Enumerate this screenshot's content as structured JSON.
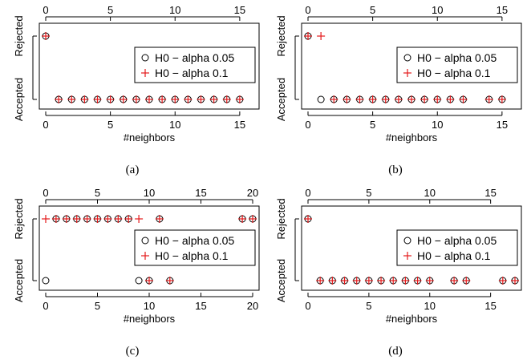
{
  "chart_data": [
    {
      "type": "scatter",
      "caption": "(a)",
      "xlabel": "#neighbors",
      "xlim": [
        0,
        16
      ],
      "x_ticks": [
        0,
        5,
        10,
        15
      ],
      "y_categories": [
        "Accepted",
        "Rejected"
      ],
      "legend": {
        "placement": "right",
        "entries": [
          "H0 − alpha 0.05",
          "H0 − alpha 0.1"
        ]
      },
      "series": [
        {
          "name": "H0 − alpha 0.05",
          "marker": "circle",
          "color": "#000000",
          "points": [
            [
              0,
              "Rejected"
            ],
            [
              1,
              "Accepted"
            ],
            [
              2,
              "Accepted"
            ],
            [
              3,
              "Accepted"
            ],
            [
              4,
              "Accepted"
            ],
            [
              5,
              "Accepted"
            ],
            [
              6,
              "Accepted"
            ],
            [
              7,
              "Accepted"
            ],
            [
              8,
              "Accepted"
            ],
            [
              9,
              "Accepted"
            ],
            [
              10,
              "Accepted"
            ],
            [
              11,
              "Accepted"
            ],
            [
              12,
              "Accepted"
            ],
            [
              13,
              "Accepted"
            ],
            [
              14,
              "Accepted"
            ],
            [
              15,
              "Accepted"
            ]
          ]
        },
        {
          "name": "H0 − alpha 0.1",
          "marker": "plus",
          "color": "#e41a1c",
          "points": [
            [
              0,
              "Rejected"
            ],
            [
              1,
              "Accepted"
            ],
            [
              2,
              "Accepted"
            ],
            [
              3,
              "Accepted"
            ],
            [
              4,
              "Accepted"
            ],
            [
              5,
              "Accepted"
            ],
            [
              6,
              "Accepted"
            ],
            [
              7,
              "Accepted"
            ],
            [
              8,
              "Accepted"
            ],
            [
              9,
              "Accepted"
            ],
            [
              10,
              "Accepted"
            ],
            [
              11,
              "Accepted"
            ],
            [
              12,
              "Accepted"
            ],
            [
              13,
              "Accepted"
            ],
            [
              14,
              "Accepted"
            ],
            [
              15,
              "Accepted"
            ]
          ]
        }
      ]
    },
    {
      "type": "scatter",
      "caption": "(b)",
      "xlabel": "#neighbors",
      "xlim": [
        0,
        16
      ],
      "x_ticks": [
        0,
        5,
        10,
        15
      ],
      "y_categories": [
        "Accepted",
        "Rejected"
      ],
      "legend": {
        "placement": "right",
        "entries": [
          "H0 − alpha 0.05",
          "H0 − alpha 0.1"
        ]
      },
      "series": [
        {
          "name": "H0 − alpha 0.05",
          "marker": "circle",
          "color": "#000000",
          "points": [
            [
              0,
              "Rejected"
            ],
            [
              1,
              "Accepted"
            ],
            [
              2,
              "Accepted"
            ],
            [
              3,
              "Accepted"
            ],
            [
              4,
              "Accepted"
            ],
            [
              5,
              "Accepted"
            ],
            [
              6,
              "Accepted"
            ],
            [
              7,
              "Accepted"
            ],
            [
              8,
              "Accepted"
            ],
            [
              9,
              "Accepted"
            ],
            [
              10,
              "Accepted"
            ],
            [
              11,
              "Accepted"
            ],
            [
              12,
              "Accepted"
            ],
            [
              14,
              "Accepted"
            ],
            [
              15,
              "Accepted"
            ]
          ]
        },
        {
          "name": "H0 − alpha 0.1",
          "marker": "plus",
          "color": "#e41a1c",
          "points": [
            [
              0,
              "Rejected"
            ],
            [
              1,
              "Rejected"
            ],
            [
              2,
              "Accepted"
            ],
            [
              3,
              "Accepted"
            ],
            [
              4,
              "Accepted"
            ],
            [
              5,
              "Accepted"
            ],
            [
              6,
              "Accepted"
            ],
            [
              7,
              "Accepted"
            ],
            [
              8,
              "Accepted"
            ],
            [
              9,
              "Accepted"
            ],
            [
              10,
              "Accepted"
            ],
            [
              11,
              "Accepted"
            ],
            [
              12,
              "Accepted"
            ],
            [
              14,
              "Accepted"
            ],
            [
              15,
              "Accepted"
            ]
          ]
        }
      ]
    },
    {
      "type": "scatter",
      "caption": "(c)",
      "xlabel": "#neighbors",
      "xlim": [
        0,
        20
      ],
      "x_ticks": [
        0,
        5,
        10,
        15,
        20
      ],
      "y_categories": [
        "Accepted",
        "Rejected"
      ],
      "legend": {
        "placement": "right",
        "entries": [
          "H0 − alpha 0.05",
          "H0 − alpha 0.1"
        ]
      },
      "series": [
        {
          "name": "H0 − alpha 0.05",
          "marker": "circle",
          "color": "#000000",
          "points": [
            [
              0,
              "Accepted"
            ],
            [
              1,
              "Rejected"
            ],
            [
              2,
              "Rejected"
            ],
            [
              3,
              "Rejected"
            ],
            [
              4,
              "Rejected"
            ],
            [
              5,
              "Rejected"
            ],
            [
              6,
              "Rejected"
            ],
            [
              7,
              "Rejected"
            ],
            [
              8,
              "Rejected"
            ],
            [
              9,
              "Accepted"
            ],
            [
              10,
              "Accepted"
            ],
            [
              11,
              "Rejected"
            ],
            [
              12,
              "Accepted"
            ],
            [
              19,
              "Rejected"
            ],
            [
              20,
              "Rejected"
            ]
          ]
        },
        {
          "name": "H0 − alpha 0.1",
          "marker": "plus",
          "color": "#e41a1c",
          "points": [
            [
              0,
              "Rejected"
            ],
            [
              1,
              "Rejected"
            ],
            [
              2,
              "Rejected"
            ],
            [
              3,
              "Rejected"
            ],
            [
              4,
              "Rejected"
            ],
            [
              5,
              "Rejected"
            ],
            [
              6,
              "Rejected"
            ],
            [
              7,
              "Rejected"
            ],
            [
              8,
              "Rejected"
            ],
            [
              9,
              "Rejected"
            ],
            [
              10,
              "Accepted"
            ],
            [
              11,
              "Rejected"
            ],
            [
              12,
              "Accepted"
            ],
            [
              19,
              "Rejected"
            ],
            [
              20,
              "Rejected"
            ]
          ]
        }
      ]
    },
    {
      "type": "scatter",
      "caption": "(d)",
      "xlabel": "#neighbors",
      "xlim": [
        0,
        17
      ],
      "x_ticks": [
        0,
        5,
        10,
        15
      ],
      "y_categories": [
        "Accepted",
        "Rejected"
      ],
      "legend": {
        "placement": "right",
        "entries": [
          "H0 − alpha 0.05",
          "H0 − alpha 0.1"
        ]
      },
      "series": [
        {
          "name": "H0 − alpha 0.05",
          "marker": "circle",
          "color": "#000000",
          "points": [
            [
              0,
              "Rejected"
            ],
            [
              1,
              "Accepted"
            ],
            [
              2,
              "Accepted"
            ],
            [
              3,
              "Accepted"
            ],
            [
              4,
              "Accepted"
            ],
            [
              5,
              "Accepted"
            ],
            [
              6,
              "Accepted"
            ],
            [
              7,
              "Accepted"
            ],
            [
              8,
              "Accepted"
            ],
            [
              9,
              "Accepted"
            ],
            [
              10,
              "Accepted"
            ],
            [
              12,
              "Accepted"
            ],
            [
              13,
              "Accepted"
            ],
            [
              16,
              "Accepted"
            ],
            [
              17,
              "Accepted"
            ]
          ]
        },
        {
          "name": "H0 − alpha 0.1",
          "marker": "plus",
          "color": "#e41a1c",
          "points": [
            [
              0,
              "Rejected"
            ],
            [
              1,
              "Accepted"
            ],
            [
              2,
              "Accepted"
            ],
            [
              3,
              "Accepted"
            ],
            [
              4,
              "Accepted"
            ],
            [
              5,
              "Accepted"
            ],
            [
              6,
              "Accepted"
            ],
            [
              7,
              "Accepted"
            ],
            [
              8,
              "Accepted"
            ],
            [
              9,
              "Accepted"
            ],
            [
              10,
              "Accepted"
            ],
            [
              12,
              "Accepted"
            ],
            [
              13,
              "Accepted"
            ],
            [
              16,
              "Accepted"
            ],
            [
              17,
              "Accepted"
            ]
          ]
        }
      ]
    }
  ]
}
